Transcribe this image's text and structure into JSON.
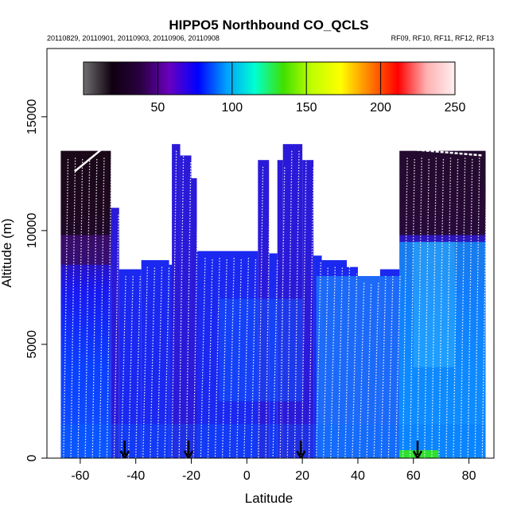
{
  "chart_data": {
    "type": "heatmap",
    "title": "HIPPO5 Northbound CO_QCLS",
    "subtitle_left": "20110829, 20110901, 20110903, 20110906, 20110908",
    "subtitle_right": "RF09, RF10, RF11, RF12, RF13",
    "xlabel": "Latitude",
    "ylabel": "Altitude (m)",
    "xlim": [
      -72,
      89
    ],
    "ylim": [
      0,
      18000
    ],
    "x_ticks": [
      "-60",
      "-40",
      "-20",
      "0",
      "20",
      "40",
      "60",
      "80"
    ],
    "x_tick_values": [
      -60,
      -40,
      -20,
      0,
      20,
      40,
      60,
      80
    ],
    "y_ticks": [
      "0",
      "5000",
      "10000",
      "15000"
    ],
    "y_tick_values": [
      0,
      5000,
      10000,
      15000
    ],
    "colorbar": {
      "range": [
        0,
        250
      ],
      "ticks": [
        "50",
        "100",
        "150",
        "200",
        "250"
      ],
      "tick_values": [
        50,
        100,
        150,
        200,
        250
      ],
      "colors": [
        "#707070",
        "#100010",
        "#2a0040",
        "#6a00c0",
        "#0000ff",
        "#00a0ff",
        "#00ffd0",
        "#40e000",
        "#c0ff00",
        "#ffff00",
        "#ff8000",
        "#ff0000",
        "#ffb0b0",
        "#fff0f0"
      ]
    },
    "profile_tops": [
      {
        "lat_range": [
          -67,
          -49
        ],
        "top_altitude": 13500
      },
      {
        "lat_range": [
          -49,
          -46
        ],
        "top_altitude": 11000
      },
      {
        "lat_range": [
          -46,
          -38
        ],
        "top_altitude": 8300
      },
      {
        "lat_range": [
          -38,
          -28
        ],
        "top_altitude": 8700
      },
      {
        "lat_range": [
          -28,
          -25
        ],
        "top_altitude": 8500
      },
      {
        "lat_range": [
          -27,
          -24
        ],
        "top_altitude": 13800
      },
      {
        "lat_range": [
          -24,
          -20
        ],
        "top_altitude": 13300
      },
      {
        "lat_range": [
          -20,
          -18
        ],
        "top_altitude": 12300
      },
      {
        "lat_range": [
          -18,
          4
        ],
        "top_altitude": 9100
      },
      {
        "lat_range": [
          4,
          8
        ],
        "top_altitude": 13100
      },
      {
        "lat_range": [
          8,
          11
        ],
        "top_altitude": 9000
      },
      {
        "lat_range": [
          11,
          13
        ],
        "top_altitude": 13100
      },
      {
        "lat_range": [
          13,
          20
        ],
        "top_altitude": 13800
      },
      {
        "lat_range": [
          20,
          24
        ],
        "top_altitude": 13100
      },
      {
        "lat_range": [
          24,
          27
        ],
        "top_altitude": 8900
      },
      {
        "lat_range": [
          27,
          36
        ],
        "top_altitude": 8700
      },
      {
        "lat_range": [
          36,
          40
        ],
        "top_altitude": 8400
      },
      {
        "lat_range": [
          40,
          48
        ],
        "top_altitude": 8000
      },
      {
        "lat_range": [
          48,
          55
        ],
        "top_altitude": 8300
      },
      {
        "lat_range": [
          55,
          86
        ],
        "top_altitude": 13500
      }
    ],
    "arrow_latitudes": [
      -44,
      -21,
      19.5,
      61.5
    ],
    "surface_high_co": {
      "lat_range": [
        55,
        69
      ],
      "value": 160
    }
  }
}
